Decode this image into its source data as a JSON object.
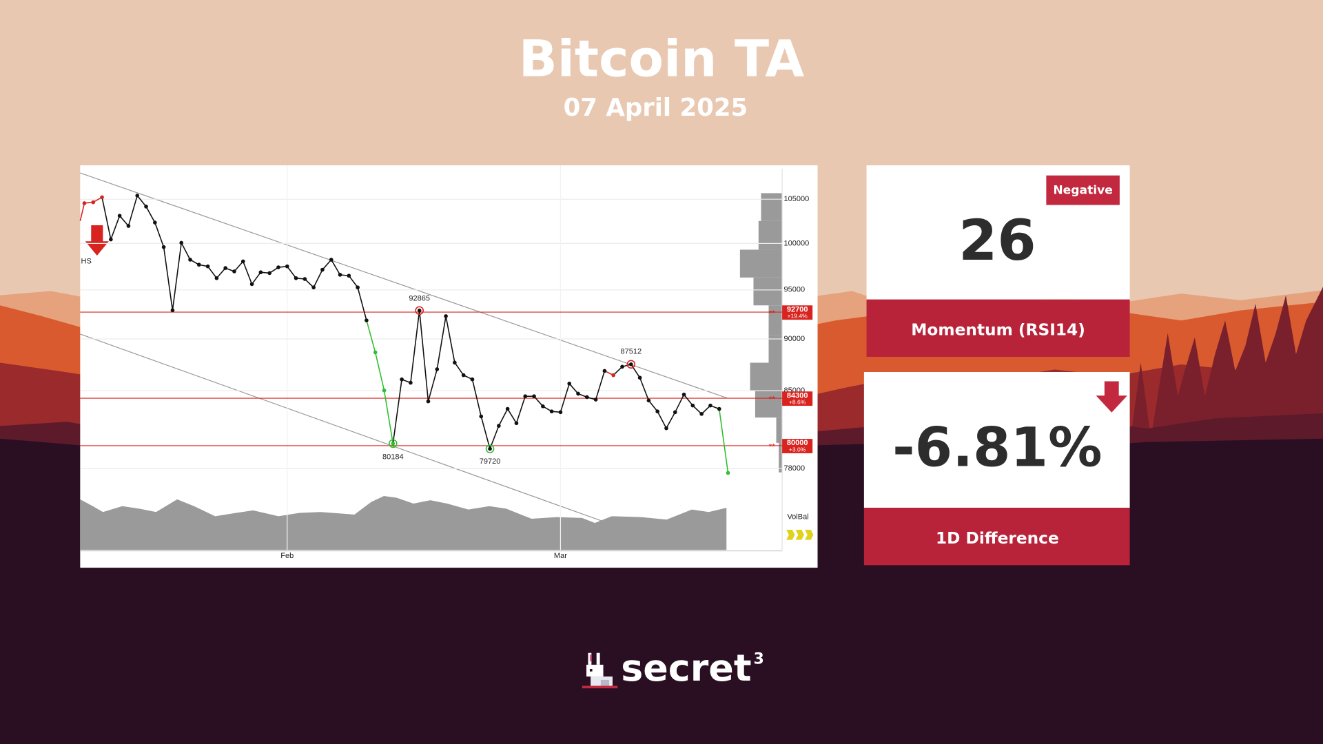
{
  "header": {
    "title": "Bitcoin TA",
    "date": "07 April 2025"
  },
  "chart_data": {
    "type": "line",
    "log_scale": true,
    "grid": true,
    "ylim": [
      71300,
      109000
    ],
    "yticks": [
      78000,
      85000,
      90000,
      95000,
      100000,
      105000
    ],
    "categories": [
      null,
      null,
      null,
      null,
      null,
      null,
      null,
      null,
      null,
      null,
      null,
      null,
      null,
      null,
      null,
      null,
      null,
      null,
      null,
      null,
      null,
      null,
      null,
      "Feb",
      null,
      null,
      null,
      null,
      null,
      null,
      null,
      null,
      null,
      null,
      null,
      null,
      null,
      null,
      null,
      null,
      null,
      null,
      null,
      null,
      null,
      null,
      null,
      null,
      null,
      null,
      null,
      null,
      null,
      null,
      "Mar",
      null,
      null,
      null,
      null,
      null,
      null,
      null,
      null,
      null,
      null,
      null,
      null,
      null,
      null,
      null,
      null,
      null,
      null,
      null
    ],
    "series": [
      {
        "color": "#111111",
        "values": [
          104540,
          104650,
          105230,
          100440,
          103100,
          101950,
          105420,
          104150,
          102330,
          99600,
          92890,
          100070,
          98220,
          97680,
          97500,
          96240,
          97320,
          96960,
          98040,
          95610,
          96870,
          96780,
          97400,
          97500,
          96240,
          96150,
          95260,
          97140,
          98220,
          96600,
          96500,
          95260,
          91860,
          88670,
          85030,
          80184,
          86070,
          85750,
          92865,
          84010,
          87040,
          92290,
          87680,
          86470,
          86070,
          82620,
          79720,
          81770,
          83310,
          82010,
          84480,
          84480,
          83550,
          83080,
          83010,
          85670,
          84720,
          84400,
          84170,
          86880,
          86470,
          87280,
          87512,
          86230,
          84090,
          83080,
          81550,
          83010,
          84640,
          83620,
          82850,
          83620,
          83310,
          77630
        ],
        "point_colors": [
          "#d8231f",
          "#d8231f",
          "#d8231f",
          "#111111",
          "#111111",
          "#111111",
          "#111111",
          "#111111",
          "#111111",
          "#111111",
          "#111111",
          "#111111",
          "#111111",
          "#111111",
          "#111111",
          "#111111",
          "#111111",
          "#111111",
          "#111111",
          "#111111",
          "#111111",
          "#111111",
          "#111111",
          "#111111",
          "#111111",
          "#111111",
          "#111111",
          "#111111",
          "#111111",
          "#111111",
          "#111111",
          "#111111",
          "#111111",
          "#2fbf2f",
          "#2fbf2f",
          "#2fbf2f",
          "#111111",
          "#111111",
          "#111111",
          "#111111",
          "#111111",
          "#111111",
          "#111111",
          "#111111",
          "#111111",
          "#111111",
          "#111111",
          "#111111",
          "#111111",
          "#111111",
          "#111111",
          "#111111",
          "#111111",
          "#111111",
          "#111111",
          "#111111",
          "#111111",
          "#111111",
          "#111111",
          "#111111",
          "#d8231f",
          "#111111",
          "#111111",
          "#111111",
          "#111111",
          "#111111",
          "#111111",
          "#111111",
          "#111111",
          "#111111",
          "#111111",
          "#111111",
          "#111111",
          "#2fbf2f"
        ]
      }
    ],
    "levels": [
      {
        "value": 92700,
        "change": "+19.4%",
        "marker": "**"
      },
      {
        "value": 84300,
        "change": "+8.6%",
        "marker": "**"
      },
      {
        "value": 80000,
        "change": "+3.0%",
        "marker": "**"
      }
    ],
    "level_color": "#d8231f",
    "pattern_label": "HS",
    "volume_label": "VolBal"
  },
  "cards": [
    {
      "badge": "Negative",
      "value": 26,
      "label": "Momentum (RSI14)"
    },
    {
      "value": "-6.81%",
      "label": "1D Difference"
    }
  ],
  "brand": {
    "name": "secret",
    "superscript": "3"
  }
}
